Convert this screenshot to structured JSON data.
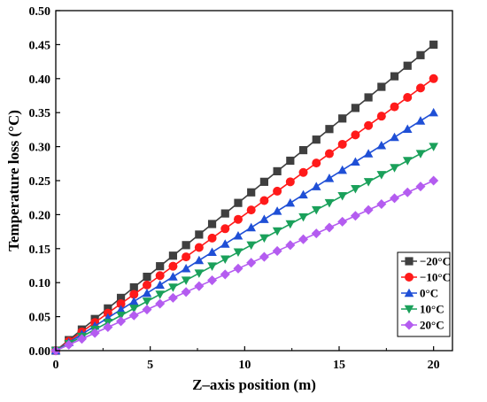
{
  "chart_data": {
    "type": "line",
    "xlabel": "Z–axis position (m)",
    "ylabel": "Temperature loss (°C)",
    "xlim": [
      0,
      21
    ],
    "ylim": [
      0,
      0.5
    ],
    "xticks": [
      0,
      5,
      10,
      15,
      20
    ],
    "xtick_labels": [
      "0",
      "5",
      "10",
      "15",
      "20"
    ],
    "yticks": [
      0,
      0.05,
      0.1,
      0.15,
      0.2,
      0.25,
      0.3,
      0.35,
      0.4,
      0.45,
      0.5
    ],
    "ytick_labels": [
      "0.00",
      "0.05",
      "0.10",
      "0.15",
      "0.20",
      "0.25",
      "0.30",
      "0.35",
      "0.40",
      "0.45",
      "0.50"
    ],
    "grid": false,
    "legend_position": "bottom-right",
    "x": [
      0,
      0.6897,
      1.3793,
      2.069,
      2.7586,
      3.4483,
      4.1379,
      4.8276,
      5.5172,
      6.2069,
      6.8966,
      7.5862,
      8.2759,
      8.9655,
      9.6552,
      10.3448,
      11.0345,
      11.7241,
      12.4138,
      13.1034,
      13.7931,
      14.4828,
      15.1724,
      15.8621,
      16.5517,
      17.2414,
      17.931,
      18.6207,
      19.3103,
      20
    ],
    "series": [
      {
        "name": "−20°C",
        "color": "#3f3f3f",
        "marker": "square",
        "end_value": 0.45
      },
      {
        "name": "−10°C",
        "color": "#ff1a1a",
        "marker": "circle",
        "end_value": 0.4
      },
      {
        "name": "0°C",
        "color": "#1f4fd6",
        "marker": "triangle-up",
        "end_value": 0.35
      },
      {
        "name": "10°C",
        "color": "#1aa05a",
        "marker": "triangle-down",
        "end_value": 0.3
      },
      {
        "name": "20°C",
        "color": "#b45cf0",
        "marker": "diamond",
        "end_value": 0.25
      }
    ]
  }
}
